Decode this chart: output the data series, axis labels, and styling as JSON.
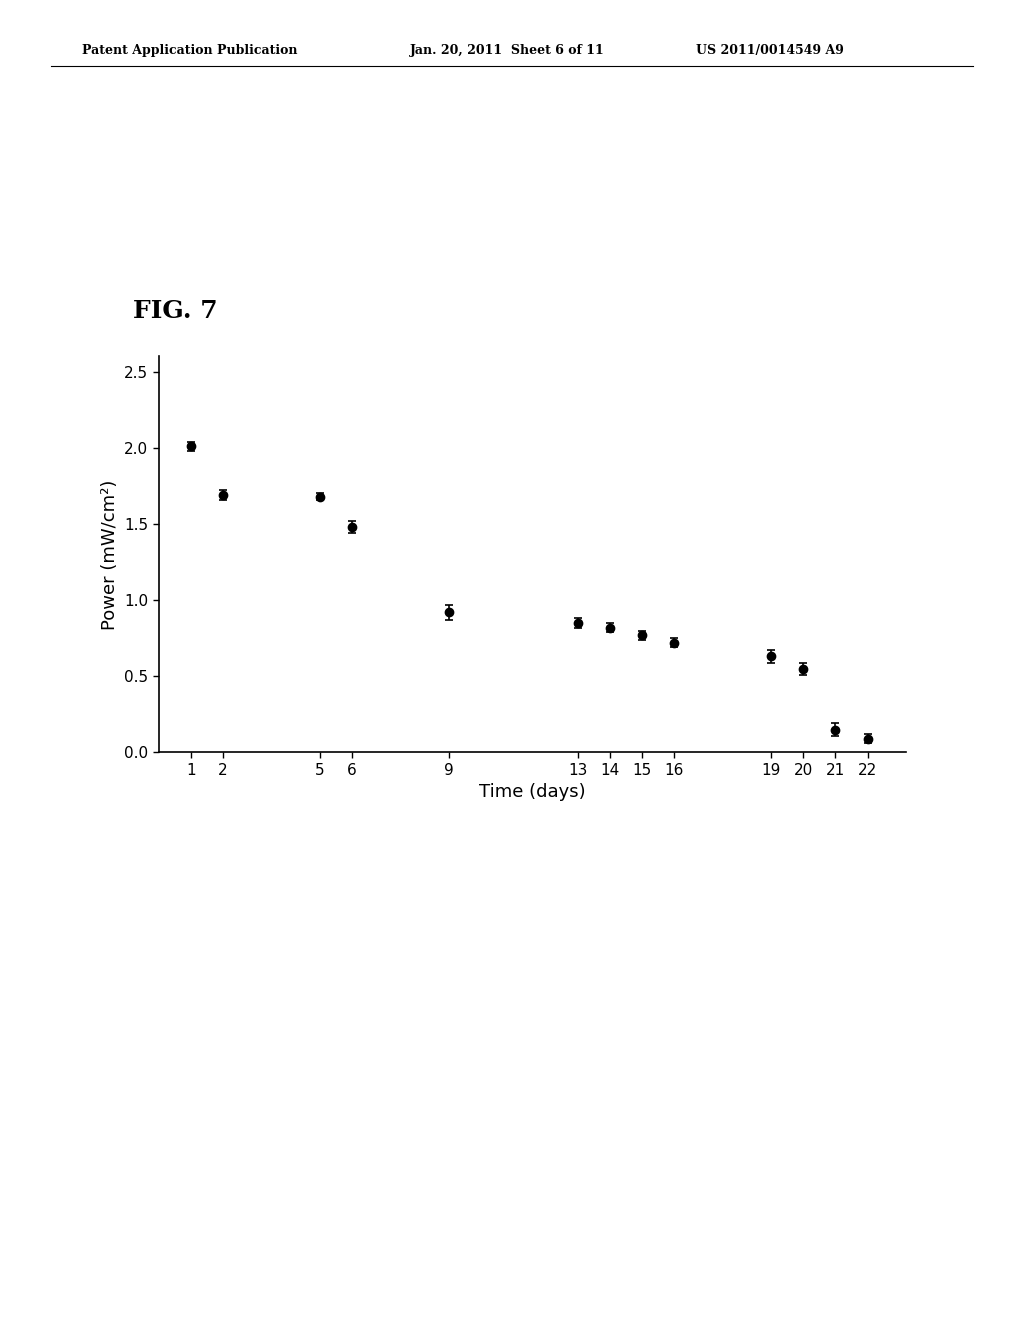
{
  "x": [
    1,
    2,
    5,
    6,
    9,
    13,
    14,
    15,
    16,
    19,
    20,
    21,
    22
  ],
  "y": [
    2.01,
    1.69,
    1.68,
    1.48,
    0.92,
    0.85,
    0.82,
    0.77,
    0.72,
    0.63,
    0.55,
    0.15,
    0.09
  ],
  "yerr": [
    0.03,
    0.03,
    0.02,
    0.04,
    0.05,
    0.03,
    0.03,
    0.03,
    0.03,
    0.04,
    0.04,
    0.04,
    0.03
  ],
  "xticks": [
    1,
    2,
    5,
    6,
    9,
    13,
    14,
    15,
    16,
    19,
    20,
    21,
    22
  ],
  "yticks": [
    0.0,
    0.5,
    1.0,
    1.5,
    2.0,
    2.5
  ],
  "ylim": [
    0.0,
    2.6
  ],
  "xlabel": "Time (days)",
  "ylabel": "Power (mW/cm²)",
  "fig_label": "FIG. 7",
  "header_left": "Patent Application Publication",
  "header_mid": "Jan. 20, 2011  Sheet 6 of 11",
  "header_right": "US 2011/0014549 A9",
  "background_color": "#ffffff",
  "line_color": "#000000",
  "marker_color": "#000000",
  "marker_size": 6,
  "line_width": 1.5,
  "capsize": 3,
  "elinewidth": 1.2,
  "fig_label_fontsize": 18,
  "axis_label_fontsize": 13,
  "tick_fontsize": 11,
  "header_fontsize": 9
}
